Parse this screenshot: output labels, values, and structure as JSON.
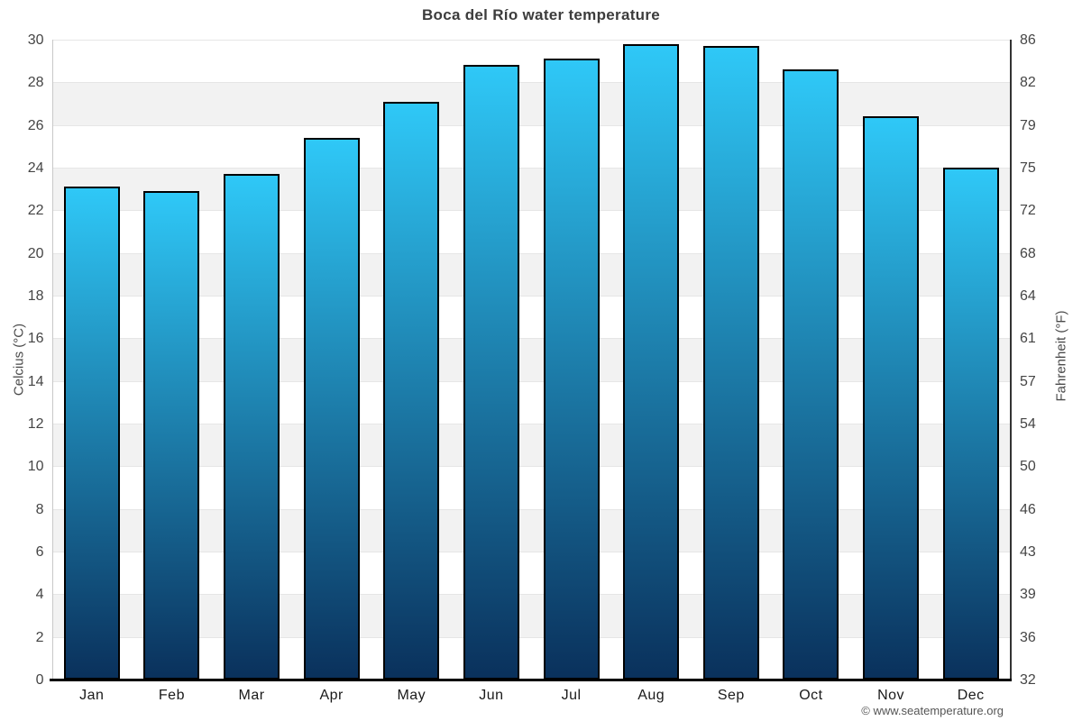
{
  "chart_data": {
    "type": "bar",
    "title": "Boca del Río water temperature",
    "categories": [
      "Jan",
      "Feb",
      "Mar",
      "Apr",
      "May",
      "Jun",
      "Jul",
      "Aug",
      "Sep",
      "Oct",
      "Nov",
      "Dec"
    ],
    "values": [
      23.1,
      22.9,
      23.7,
      25.4,
      27.1,
      28.8,
      29.1,
      29.8,
      29.7,
      28.6,
      26.4,
      24.0
    ],
    "ylabel_left": "Celcius (°C)",
    "ylabel_right": "Fahrenheit (°F)",
    "ylim": [
      0,
      30
    ],
    "celsius_ticks": [
      0,
      2,
      4,
      6,
      8,
      10,
      12,
      14,
      16,
      18,
      20,
      22,
      24,
      26,
      28,
      30
    ],
    "fahrenheit_tick_labels": [
      "32",
      "36",
      "39",
      "43",
      "46",
      "50",
      "54",
      "57",
      "61",
      "64",
      "68",
      "72",
      "75",
      "79",
      "82",
      "86"
    ],
    "grid": true,
    "legend": false,
    "colors": {
      "bar_top": "#2fc8f7",
      "bar_bottom": "#0a315c",
      "bar_border": "#000000",
      "alternate_band": "#f2f2f2",
      "gridline": "#e6e6e6",
      "left_axis_line": "#c8c8c8",
      "right_axis_line": "#333333",
      "bottom_axis_line": "#000000"
    }
  },
  "footer": {
    "copyright": "© www.seatemperature.org"
  }
}
